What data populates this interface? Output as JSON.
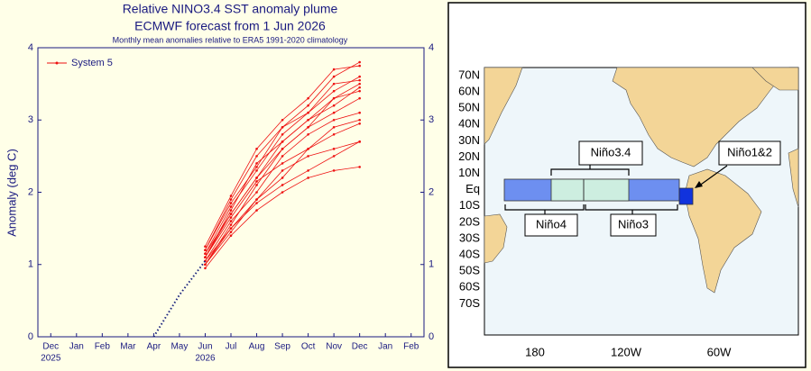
{
  "chart_data": {
    "type": "line",
    "title": "Relative NINO3.4 SST anomaly plume",
    "title2": "ECMWF forecast from 1 Jun 2026",
    "subtitle": "Monthly mean anomalies relative to ERA5 1991-2020 climatology",
    "ylabel": "Anomaly (deg C)",
    "categories": [
      "Dec",
      "Jan",
      "Feb",
      "Mar",
      "Apr",
      "May",
      "Jun",
      "Jul",
      "Aug",
      "Sep",
      "Oct",
      "Nov",
      "Dec",
      "Jan",
      "Feb"
    ],
    "years": [
      "2025",
      null,
      null,
      null,
      null,
      null,
      "2026",
      null,
      null,
      null,
      null,
      null,
      null,
      null,
      null
    ],
    "ylim": [
      0,
      4
    ],
    "yticks": [
      0,
      1,
      2,
      3,
      4
    ],
    "legend": "upper left",
    "series": [
      {
        "name": "System 5",
        "color": "#ee1111",
        "values": [
          null,
          null,
          null,
          null,
          null,
          null,
          1.0,
          1.5,
          1.9,
          2.3,
          2.5,
          2.6,
          2.7,
          null,
          null
        ]
      },
      {
        "color": "#ee1111",
        "values": [
          null,
          null,
          null,
          null,
          null,
          null,
          1.1,
          1.7,
          2.2,
          2.7,
          3.0,
          3.3,
          3.5,
          null,
          null
        ]
      },
      {
        "color": "#ee1111",
        "values": [
          null,
          null,
          null,
          null,
          null,
          null,
          1.2,
          1.9,
          2.5,
          2.9,
          3.2,
          3.6,
          3.8,
          null,
          null
        ]
      },
      {
        "color": "#ee1111",
        "values": [
          null,
          null,
          null,
          null,
          null,
          null,
          0.95,
          1.4,
          1.75,
          2.0,
          2.2,
          2.3,
          2.35,
          null,
          null
        ]
      },
      {
        "color": "#ee1111",
        "values": [
          null,
          null,
          null,
          null,
          null,
          null,
          1.05,
          1.6,
          2.0,
          2.5,
          2.8,
          3.0,
          3.1,
          null,
          null
        ]
      },
      {
        "color": "#ee1111",
        "values": [
          null,
          null,
          null,
          null,
          null,
          null,
          1.15,
          1.8,
          2.3,
          2.8,
          3.1,
          3.4,
          3.6,
          null,
          null
        ]
      },
      {
        "color": "#ee1111",
        "values": [
          null,
          null,
          null,
          null,
          null,
          null,
          1.0,
          1.55,
          2.1,
          2.6,
          2.9,
          3.1,
          3.3,
          null,
          null
        ]
      },
      {
        "color": "#ee1111",
        "values": [
          null,
          null,
          null,
          null,
          null,
          null,
          1.1,
          1.65,
          2.15,
          2.4,
          2.6,
          2.8,
          2.95,
          null,
          null
        ]
      },
      {
        "color": "#ee1111",
        "values": [
          null,
          null,
          null,
          null,
          null,
          null,
          1.25,
          1.95,
          2.6,
          3.0,
          3.3,
          3.7,
          3.75,
          null,
          null
        ]
      },
      {
        "color": "#ee1111",
        "values": [
          null,
          null,
          null,
          null,
          null,
          null,
          1.0,
          1.45,
          1.9,
          2.2,
          2.6,
          2.9,
          3.0,
          null,
          null
        ]
      },
      {
        "color": "#ee1111",
        "values": [
          null,
          null,
          null,
          null,
          null,
          null,
          1.1,
          1.75,
          2.4,
          2.7,
          3.0,
          3.2,
          3.45,
          null,
          null
        ]
      },
      {
        "color": "#ee1111",
        "values": [
          null,
          null,
          null,
          null,
          null,
          null,
          1.05,
          1.5,
          1.85,
          2.1,
          2.3,
          2.5,
          2.7,
          null,
          null
        ]
      },
      {
        "color": "#ee1111",
        "values": [
          null,
          null,
          null,
          null,
          null,
          null,
          1.15,
          1.7,
          2.2,
          2.6,
          2.9,
          3.3,
          3.4,
          null,
          null
        ]
      },
      {
        "color": "#ee1111",
        "values": [
          null,
          null,
          null,
          null,
          null,
          null,
          1.2,
          1.85,
          2.35,
          2.9,
          3.1,
          3.5,
          3.55,
          null,
          null
        ]
      },
      {
        "color": "#1a237e",
        "dotted": true,
        "values": [
          null,
          null,
          null,
          null,
          0,
          0.58,
          1.05,
          null,
          null,
          null,
          null,
          null,
          null,
          null,
          null
        ]
      }
    ]
  },
  "map": {
    "lat_labels": [
      "70N",
      "60N",
      "50N",
      "40N",
      "30N",
      "20N",
      "10N",
      "Eq",
      "10S",
      "20S",
      "30S",
      "40S",
      "50S",
      "60S",
      "70S"
    ],
    "lon_labels": [
      "180",
      "120W",
      "60W"
    ],
    "regions": [
      {
        "label": "Niño3.4"
      },
      {
        "label": "Niño4"
      },
      {
        "label": "Niño3"
      },
      {
        "label": "Niño1&2"
      }
    ]
  }
}
